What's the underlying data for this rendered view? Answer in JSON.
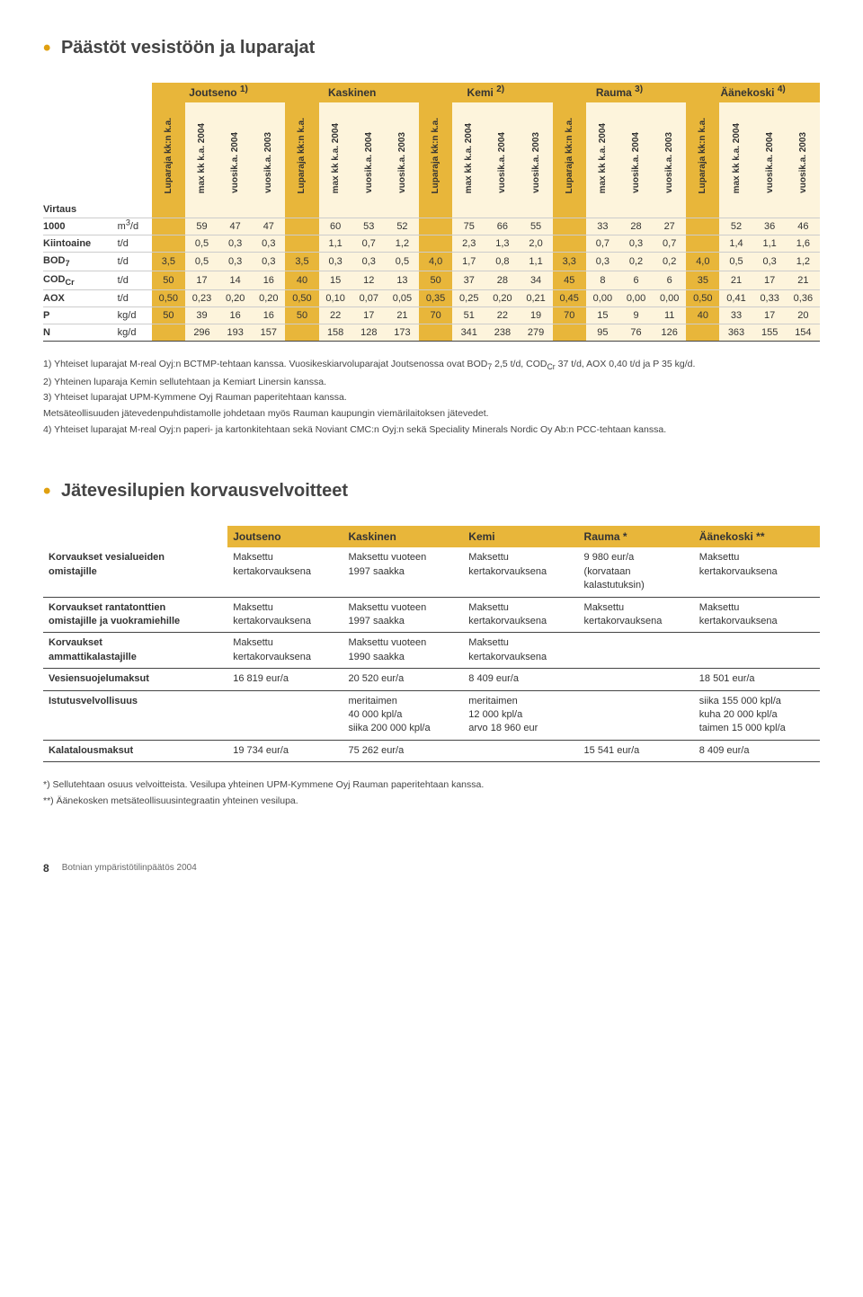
{
  "section1": {
    "title": "Päästöt vesistöön ja luparajat",
    "groups": [
      {
        "label": "Joutseno",
        "sup": "1)"
      },
      {
        "label": "Kaskinen",
        "sup": ""
      },
      {
        "label": "Kemi",
        "sup": "2)"
      },
      {
        "label": "Rauma",
        "sup": "3)"
      },
      {
        "label": "Äänekoski",
        "sup": "4)"
      }
    ],
    "col_labels": [
      "Luparaja kk:n k.a.",
      "max kk k.a. 2004",
      "vuosik.a. 2004",
      "vuosik.a. 2003"
    ],
    "rows": [
      {
        "label": "Virtaus",
        "unit": "",
        "vals": [
          "",
          "",
          "",
          "",
          "",
          "",
          "",
          "",
          "",
          "",
          "",
          "",
          "",
          "",
          "",
          "",
          "",
          "",
          "",
          ""
        ]
      },
      {
        "label": "1000",
        "unit": "m³/d",
        "vals": [
          "",
          "59",
          "47",
          "47",
          "",
          "60",
          "53",
          "52",
          "",
          "75",
          "66",
          "55",
          "",
          "33",
          "28",
          "27",
          "",
          "52",
          "36",
          "46"
        ]
      },
      {
        "label": "Kiintoaine",
        "unit": "t/d",
        "vals": [
          "",
          "0,5",
          "0,3",
          "0,3",
          "",
          "1,1",
          "0,7",
          "1,2",
          "",
          "2,3",
          "1,3",
          "2,0",
          "",
          "0,7",
          "0,3",
          "0,7",
          "",
          "1,4",
          "1,1",
          "1,6"
        ]
      },
      {
        "label": "BOD₇",
        "unit": "t/d",
        "vals": [
          "3,5",
          "0,5",
          "0,3",
          "0,3",
          "3,5",
          "0,3",
          "0,3",
          "0,5",
          "4,0",
          "1,7",
          "0,8",
          "1,1",
          "3,3",
          "0,3",
          "0,2",
          "0,2",
          "4,0",
          "0,5",
          "0,3",
          "1,2"
        ]
      },
      {
        "label": "COD_Cr",
        "unit": "t/d",
        "vals": [
          "50",
          "17",
          "14",
          "16",
          "40",
          "15",
          "12",
          "13",
          "50",
          "37",
          "28",
          "34",
          "45",
          "8",
          "6",
          "6",
          "35",
          "21",
          "17",
          "21"
        ]
      },
      {
        "label": "AOX",
        "unit": "t/d",
        "vals": [
          "0,50",
          "0,23",
          "0,20",
          "0,20",
          "0,50",
          "0,10",
          "0,07",
          "0,05",
          "0,35",
          "0,25",
          "0,20",
          "0,21",
          "0,45",
          "0,00",
          "0,00",
          "0,00",
          "0,50",
          "0,41",
          "0,33",
          "0,36"
        ]
      },
      {
        "label": "P",
        "unit": "kg/d",
        "vals": [
          "50",
          "39",
          "16",
          "16",
          "50",
          "22",
          "17",
          "21",
          "70",
          "51",
          "22",
          "19",
          "70",
          "15",
          "9",
          "11",
          "40",
          "33",
          "17",
          "20"
        ]
      },
      {
        "label": "N",
        "unit": "kg/d",
        "vals": [
          "",
          "296",
          "193",
          "157",
          "",
          "158",
          "128",
          "173",
          "",
          "341",
          "238",
          "279",
          "",
          "95",
          "76",
          "126",
          "",
          "363",
          "155",
          "154"
        ]
      }
    ],
    "notes": [
      "1) Yhteiset luparajat M-real Oyj:n BCTMP-tehtaan kanssa. Vuosikeskiarvoluparajat Joutsenossa ovat BOD₇ 2,5 t/d, COD_Cr 37 t/d, AOX 0,40 t/d ja P 35 kg/d.",
      "2) Yhteinen luparaja Kemin sellutehtaan ja Kemiart Linersin kanssa.",
      "3) Yhteiset luparajat UPM-Kymmene Oyj Rauman paperitehtaan kanssa.",
      "    Metsäteollisuuden jätevedenpuhdistamolle johdetaan myös Rauman kaupungin viemärilaitoksen jätevedet.",
      "4) Yhteiset luparajat M-real Oyj:n paperi- ja kartonkitehtaan sekä Noviant CMC:n Oyj:n sekä Speciality Minerals Nordic Oy Ab:n PCC-tehtaan kanssa."
    ]
  },
  "section2": {
    "title": "Jätevesilupien korvausvelvoitteet",
    "cols": [
      "",
      "Joutseno",
      "Kaskinen",
      "Kemi",
      "Rauma *",
      "Äänekoski **"
    ],
    "rows": [
      {
        "label": [
          "Korvaukset vesialueiden",
          "omistajille"
        ],
        "cells": [
          [
            "Maksettu",
            "kertakorvauksena"
          ],
          [
            "Maksettu vuoteen",
            "1997 saakka"
          ],
          [
            "Maksettu",
            "kertakorvauksena"
          ],
          [
            "9 980 eur/a",
            "(korvataan",
            "kalastutuksin)"
          ],
          [
            "Maksettu",
            "kertakorvauksena"
          ]
        ]
      },
      {
        "label": [
          "Korvaukset rantatonttien",
          "omistajille ja vuokramiehille"
        ],
        "cells": [
          [
            "Maksettu",
            "kertakorvauksena"
          ],
          [
            "Maksettu vuoteen",
            "1997 saakka"
          ],
          [
            "Maksettu",
            "kertakorvauksena"
          ],
          [
            "Maksettu",
            "kertakorvauksena"
          ],
          [
            "Maksettu",
            "kertakorvauksena"
          ]
        ]
      },
      {
        "label": [
          "Korvaukset",
          "ammattikalastajille"
        ],
        "cells": [
          [
            "Maksettu",
            "kertakorvauksena"
          ],
          [
            "Maksettu vuoteen",
            "1990 saakka"
          ],
          [
            "Maksettu",
            "kertakorvauksena"
          ],
          [
            ""
          ],
          [
            ""
          ]
        ]
      },
      {
        "label": [
          "Vesiensuojelumaksut"
        ],
        "cells": [
          [
            "16 819 eur/a"
          ],
          [
            "20 520 eur/a"
          ],
          [
            "8 409 eur/a"
          ],
          [
            ""
          ],
          [
            "18 501 eur/a"
          ]
        ]
      },
      {
        "label": [
          "Istutusvelvollisuus"
        ],
        "cells": [
          [
            ""
          ],
          [
            "meritaimen",
            "40 000 kpl/a",
            "siika 200 000 kpl/a"
          ],
          [
            "meritaimen",
            "12 000 kpl/a",
            "arvo 18 960 eur"
          ],
          [
            ""
          ],
          [
            "siika 155 000 kpl/a",
            "kuha 20 000 kpl/a",
            "taimen 15 000 kpl/a"
          ]
        ]
      },
      {
        "label": [
          "Kalatalousmaksut"
        ],
        "cells": [
          [
            "19 734 eur/a"
          ],
          [
            "75 262 eur/a"
          ],
          [
            ""
          ],
          [
            "15 541 eur/a"
          ],
          [
            "8 409 eur/a"
          ]
        ]
      }
    ],
    "notes": [
      "*) Sellutehtaan osuus velvoitteista. Vesilupa yhteinen UPM-Kymmene Oyj Rauman paperitehtaan kanssa.",
      "**) Äänekosken metsäteollisuusintegraatin yhteinen vesilupa."
    ]
  },
  "footer": {
    "page": "8",
    "title": "Botnian ympäristötilinpäätös 2004"
  },
  "colors": {
    "accent": "#e8b63a",
    "accent_light": "#fdf4dc",
    "bullet": "#e0a010"
  }
}
